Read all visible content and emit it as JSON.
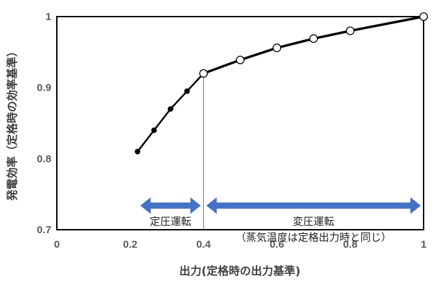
{
  "chart_data": {
    "type": "line",
    "xlabel": "出力(定格時の出力基準)",
    "ylabel": "発電効率（定格時の効率基準）",
    "xlim": [
      0,
      1
    ],
    "ylim": [
      0.7,
      1
    ],
    "x_ticks": [
      "0",
      "0.2",
      "0.4",
      "0.6",
      "0.8",
      "1"
    ],
    "y_ticks": [
      "0.7",
      "0.8",
      "0.9",
      "1"
    ],
    "grid": false,
    "series": [
      {
        "marker": "filled-circle",
        "x": [
          0.22,
          0.265,
          0.31,
          0.355,
          0.4
        ],
        "y": [
          0.81,
          0.84,
          0.87,
          0.895,
          0.92
        ]
      },
      {
        "marker": "open-circle",
        "x": [
          0.4,
          0.5,
          0.6,
          0.7,
          0.8,
          1.0
        ],
        "y": [
          0.92,
          0.939,
          0.956,
          0.969,
          0.98,
          1.0
        ]
      }
    ],
    "annotations": {
      "divider_x": 0.4,
      "arrow_y": 0.734,
      "regions": [
        {
          "x_range": [
            0.22,
            0.4
          ],
          "lines": [
            "定圧運転"
          ]
        },
        {
          "x_range": [
            0.4,
            1.0
          ],
          "lines": [
            "変圧運転",
            "（蒸気温度は定格出力時と同じ）"
          ]
        }
      ],
      "arrow_color": "#4472C4"
    },
    "colors": {
      "line": "#000000",
      "axis": "#000000"
    }
  }
}
